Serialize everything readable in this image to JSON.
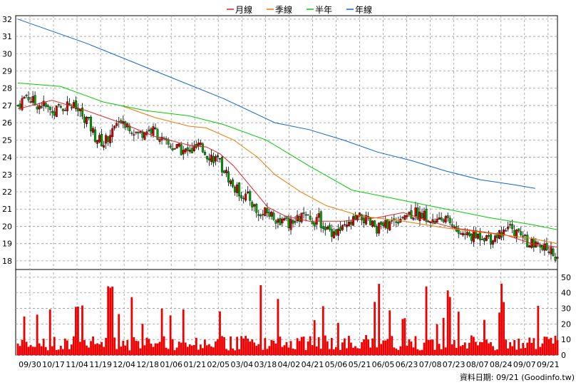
{
  "chart_data": {
    "type": "candlestick+volume",
    "legend": [
      {
        "label": "月線",
        "color": "#dd2222"
      },
      {
        "label": "季線",
        "color": "#ee7700"
      },
      {
        "label": "半年",
        "color": "#00cc00"
      },
      {
        "label": "年線",
        "color": "#1166cc"
      }
    ],
    "price_axis": {
      "min": 17.5,
      "max": 32.2,
      "ticks": [
        "18",
        "19",
        "20",
        "21",
        "22",
        "23",
        "24",
        "25",
        "26",
        "27",
        "28",
        "29",
        "30",
        "31",
        "32"
      ]
    },
    "volume_axis": {
      "min": 0,
      "max": 55,
      "ticks": [
        "0",
        "10",
        "20",
        "30",
        "40",
        "50"
      ]
    },
    "x_labels": [
      "09/30",
      "10/17",
      "11/04",
      "11/19",
      "12/04",
      "12/18",
      "01/06",
      "01/21",
      "02/05",
      "03/04",
      "03/18",
      "04/02",
      "04/21",
      "05/06",
      "05/21",
      "06/05",
      "06/23",
      "07/08",
      "07/23",
      "08/07",
      "08/24",
      "09/07",
      "09/21"
    ],
    "footer": "資料日期: 09/21 (Goodinfo.tw)",
    "series": {
      "close_path": [
        [
          0,
          27.0
        ],
        [
          4,
          27.6
        ],
        [
          8,
          27.1
        ],
        [
          12,
          27.0
        ],
        [
          16,
          26.6
        ],
        [
          20,
          26.9
        ],
        [
          24,
          27.1
        ],
        [
          28,
          26.7
        ],
        [
          32,
          26.2
        ],
        [
          36,
          25.2
        ],
        [
          40,
          24.8
        ],
        [
          44,
          25.6
        ],
        [
          48,
          26.3
        ],
        [
          52,
          25.8
        ],
        [
          56,
          25.3
        ],
        [
          60,
          25.6
        ],
        [
          64,
          25.5
        ],
        [
          68,
          24.8
        ],
        [
          72,
          24.6
        ],
        [
          76,
          24.4
        ],
        [
          80,
          24.3
        ],
        [
          84,
          24.6
        ],
        [
          88,
          24.2
        ],
        [
          92,
          23.9
        ],
        [
          96,
          23.3
        ],
        [
          100,
          22.3
        ],
        [
          104,
          21.9
        ],
        [
          108,
          21.6
        ],
        [
          112,
          20.6
        ],
        [
          116,
          20.8
        ],
        [
          120,
          20.5
        ],
        [
          124,
          20.2
        ],
        [
          128,
          20.1
        ],
        [
          132,
          20.6
        ],
        [
          136,
          20.3
        ],
        [
          140,
          20.4
        ],
        [
          144,
          19.8
        ],
        [
          148,
          19.7
        ],
        [
          152,
          19.8
        ],
        [
          156,
          20.3
        ],
        [
          160,
          20.5
        ],
        [
          164,
          20.1
        ],
        [
          168,
          19.9
        ],
        [
          172,
          20.1
        ],
        [
          176,
          20.4
        ],
        [
          180,
          20.7
        ],
        [
          184,
          20.8
        ],
        [
          188,
          20.7
        ],
        [
          192,
          20.3
        ],
        [
          196,
          20.2
        ],
        [
          200,
          20.5
        ],
        [
          204,
          19.7
        ],
        [
          208,
          19.5
        ],
        [
          212,
          19.4
        ],
        [
          216,
          19.5
        ],
        [
          220,
          19.3
        ],
        [
          224,
          19.6
        ],
        [
          228,
          19.9
        ],
        [
          232,
          19.6
        ],
        [
          236,
          19.2
        ],
        [
          240,
          18.9
        ],
        [
          244,
          18.7
        ],
        [
          248,
          18.6
        ],
        [
          251,
          18.2
        ]
      ],
      "ma_month": [
        [
          0,
          26.8
        ],
        [
          20,
          27.3
        ],
        [
          40,
          26.7
        ],
        [
          60,
          26.0
        ],
        [
          80,
          25.2
        ],
        [
          100,
          24.7
        ],
        [
          110,
          24.6
        ],
        [
          118,
          24.2
        ],
        [
          126,
          23.5
        ],
        [
          136,
          22.3
        ],
        [
          146,
          21.1
        ],
        [
          156,
          20.6
        ],
        [
          170,
          20.3
        ],
        [
          190,
          20.3
        ],
        [
          210,
          20.5
        ],
        [
          225,
          20.8
        ],
        [
          240,
          20.3
        ],
        [
          255,
          19.9
        ],
        [
          270,
          19.7
        ],
        [
          285,
          19.5
        ],
        [
          300,
          19.0
        ],
        [
          315,
          18.8
        ]
      ],
      "ma_quarter": [
        [
          60,
          27.0
        ],
        [
          80,
          26.3
        ],
        [
          100,
          25.8
        ],
        [
          110,
          25.7
        ],
        [
          126,
          25.0
        ],
        [
          140,
          24.0
        ],
        [
          150,
          23.0
        ],
        [
          165,
          22.0
        ],
        [
          180,
          21.2
        ],
        [
          200,
          20.6
        ],
        [
          225,
          20.3
        ],
        [
          250,
          19.9
        ],
        [
          275,
          19.6
        ],
        [
          300,
          19.3
        ],
        [
          315,
          19.0
        ]
      ],
      "ma_half": [
        [
          0,
          28.3
        ],
        [
          25,
          28.1
        ],
        [
          50,
          27.2
        ],
        [
          75,
          26.7
        ],
        [
          100,
          26.4
        ],
        [
          120,
          25.9
        ],
        [
          145,
          25.0
        ],
        [
          170,
          23.5
        ],
        [
          195,
          22.1
        ],
        [
          220,
          21.6
        ],
        [
          250,
          21.0
        ],
        [
          275,
          20.5
        ],
        [
          300,
          20.1
        ],
        [
          315,
          19.8
        ]
      ],
      "ma_year": [
        [
          0,
          32.0
        ],
        [
          40,
          30.6
        ],
        [
          80,
          29.0
        ],
        [
          120,
          27.4
        ],
        [
          150,
          26.0
        ],
        [
          170,
          25.6
        ],
        [
          190,
          25.0
        ],
        [
          210,
          24.3
        ],
        [
          230,
          23.8
        ],
        [
          250,
          23.2
        ],
        [
          270,
          22.7
        ],
        [
          290,
          22.4
        ],
        [
          302,
          22.2
        ]
      ]
    }
  }
}
